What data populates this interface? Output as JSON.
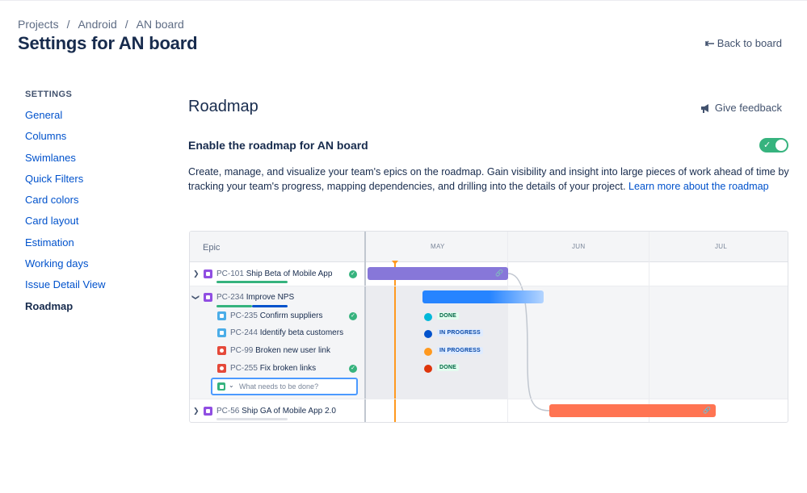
{
  "breadcrumb": {
    "items": [
      "Projects",
      "Android",
      "AN board"
    ],
    "separator": "/"
  },
  "page_title": "Settings for AN board",
  "back_link": "Back to board",
  "sidebar": {
    "heading": "SETTINGS",
    "items": [
      {
        "label": "General"
      },
      {
        "label": "Columns"
      },
      {
        "label": "Swimlanes"
      },
      {
        "label": "Quick Filters"
      },
      {
        "label": "Card colors"
      },
      {
        "label": "Card layout"
      },
      {
        "label": "Estimation"
      },
      {
        "label": "Working days"
      },
      {
        "label": "Issue Detail View"
      },
      {
        "label": "Roadmap",
        "active": true
      }
    ]
  },
  "section": {
    "title": "Roadmap",
    "feedback": "Give feedback",
    "enable_label": "Enable the roadmap for AN board",
    "toggle_on": true,
    "description": "Create, manage, and visualize your team's epics on the roadmap. Gain visibility and insight into large pieces of work ahead of time by tracking your team's progress, mapping dependencies, and drilling into the details of your project. ",
    "learn_more": "Learn more about the roadmap"
  },
  "roadmap": {
    "epic_header": "Epic",
    "months": [
      "MAY",
      "JUN",
      "JUL"
    ],
    "rows": [
      {
        "key": "PC-101",
        "title": "Ship Beta of Mobile App",
        "type": "epic",
        "done": true
      },
      {
        "key": "PC-234",
        "title": "Improve NPS",
        "type": "epic",
        "expanded": true
      },
      {
        "key": "PC-235",
        "title": "Confirm suppliers",
        "type": "task",
        "done": true,
        "status": "DONE"
      },
      {
        "key": "PC-244",
        "title": "Identify beta customers",
        "type": "task",
        "status": "IN PROGRESS"
      },
      {
        "key": "PC-99",
        "title": "Broken new user link",
        "type": "bug",
        "status": "IN PROGRESS"
      },
      {
        "key": "PC-255",
        "title": "Fix broken links",
        "type": "bug",
        "done": true,
        "status": "DONE"
      },
      {
        "key": "PC-56",
        "title": "Ship GA of Mobile App 2.0",
        "type": "epic"
      }
    ],
    "create_placeholder": "What needs to be done?",
    "colors": {
      "epic_purple": "#8777d9",
      "epic_blue": "#2684ff",
      "epic_red": "#ff7452",
      "today_line": "#ff991f"
    }
  }
}
